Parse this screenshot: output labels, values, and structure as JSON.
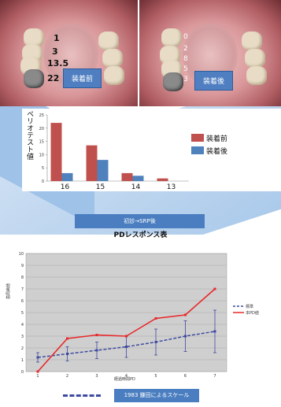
{
  "photos": {
    "left": {
      "numbers": [
        "1",
        "3",
        "13.5",
        "22"
      ],
      "tag": "装着前"
    },
    "right": {
      "numbers": [
        "0",
        "2",
        "8",
        "5",
        "3"
      ],
      "tag": "装着後"
    }
  },
  "chart_top": {
    "ylabel": "ペリオテスト値",
    "legend": [
      "装着前",
      "装着後"
    ],
    "colors": {
      "before": "#c0504d",
      "after": "#4f81bd"
    },
    "chart_data": {
      "type": "bar",
      "categories": [
        "16",
        "15",
        "14",
        "13"
      ],
      "series": [
        {
          "name": "装着前",
          "values": [
            22,
            13.5,
            3,
            1
          ]
        },
        {
          "name": "装着後",
          "values": [
            3,
            8,
            2,
            0
          ]
        }
      ],
      "yticks": [
        "0",
        "5",
        "10",
        "15",
        "20",
        "25"
      ],
      "ylim": [
        0,
        25
      ]
    }
  },
  "chart_bottom": {
    "title_box": "初診→SRP後",
    "title": "PDレスポンス表",
    "ylabel": "歯周病値",
    "xlabel": "経過時間PD",
    "legend": [
      "標準",
      "本PD値"
    ],
    "scale_label": "1983 鎌田によるスケール",
    "colors": {
      "standard": "#3e4aa0",
      "actual": "#e8282a"
    },
    "chart_data": {
      "type": "line",
      "x": [
        "1",
        "2",
        "3",
        "4",
        "5",
        "6",
        "7"
      ],
      "series": [
        {
          "name": "標準",
          "values": [
            1.2,
            1.5,
            1.8,
            2.1,
            2.5,
            3.0,
            3.4
          ],
          "err": [
            0.4,
            0.6,
            0.7,
            0.9,
            1.1,
            1.3,
            1.8
          ]
        },
        {
          "name": "本PD値",
          "values": [
            0,
            2.8,
            3.1,
            3.0,
            4.5,
            4.8,
            7.0
          ]
        }
      ],
      "yticks": [
        "0",
        "1",
        "2",
        "3",
        "4",
        "5",
        "6",
        "7",
        "8",
        "9",
        "10"
      ],
      "ylim": [
        0,
        10
      ],
      "grid": true,
      "legend_position": "right"
    }
  }
}
